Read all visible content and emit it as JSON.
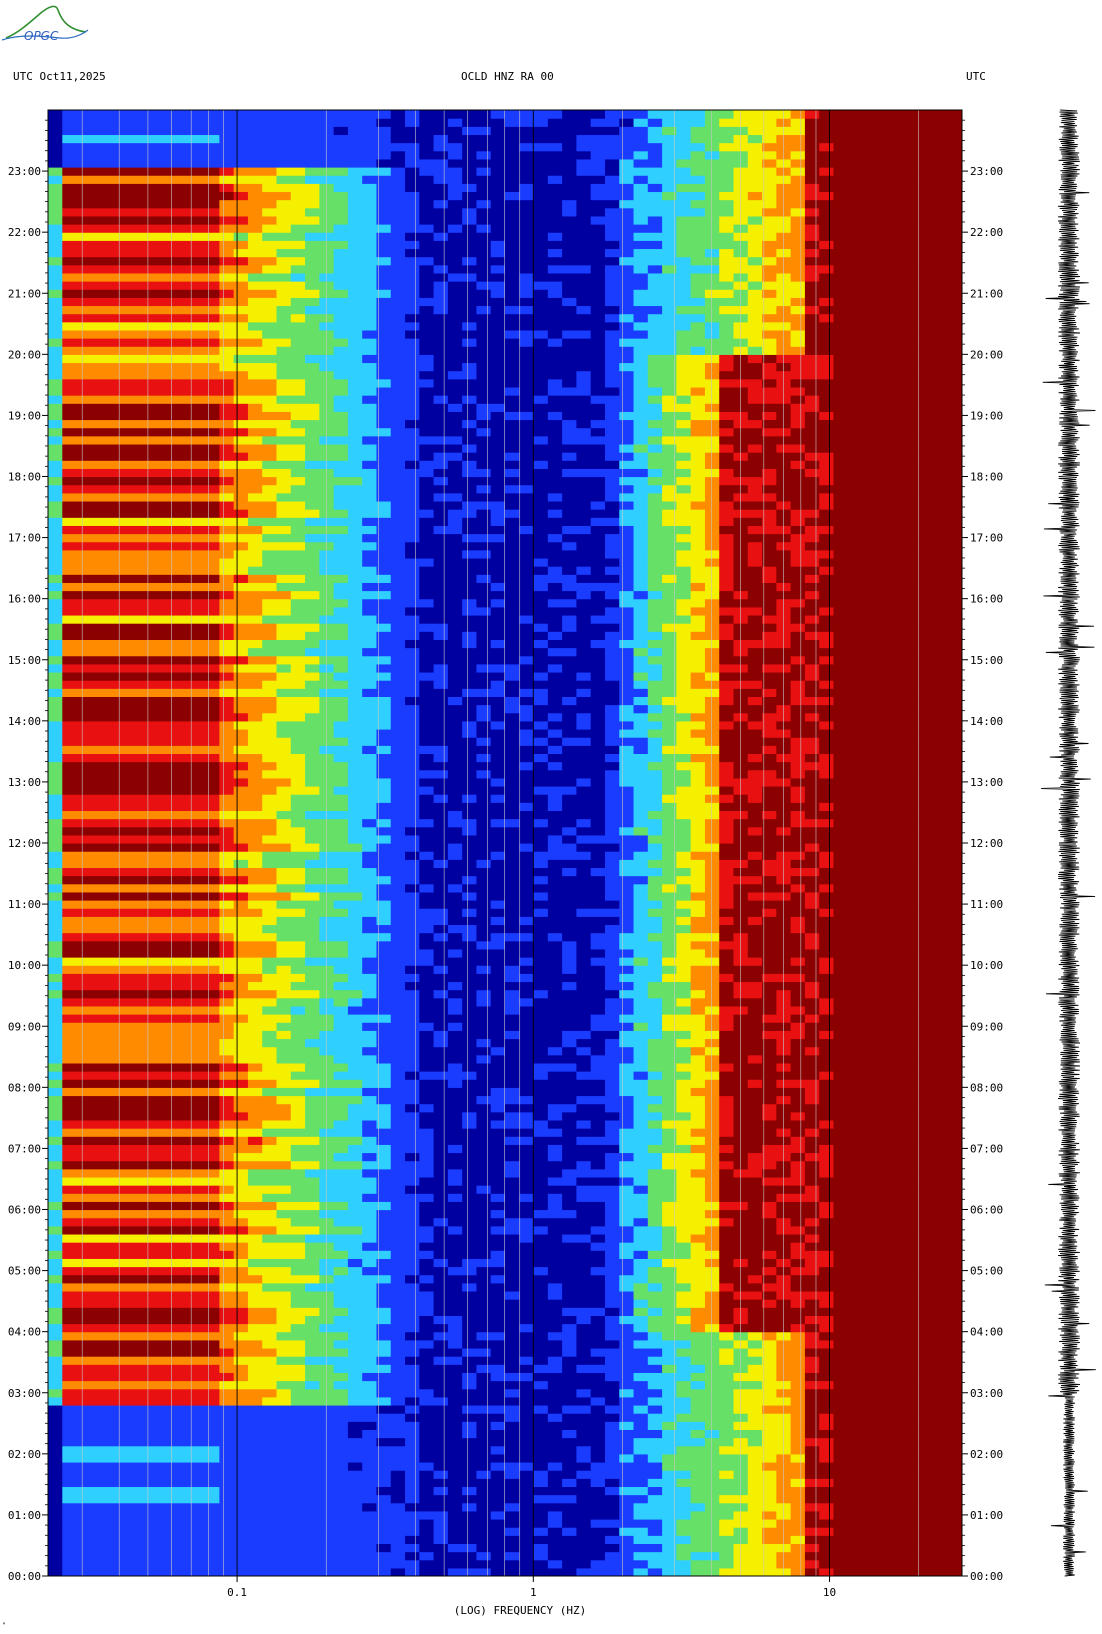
{
  "header": {
    "left": "UTC  Oct11,2025",
    "center": "OCLD HNZ RA 00",
    "right": "UTC"
  },
  "logo": {
    "text": "OPGC",
    "icon": "mountain-logo-icon"
  },
  "footer_mark": "\"",
  "colors": {
    "deep_blue": "#0000a0",
    "blue": "#1a3cff",
    "cyan": "#2fd0ff",
    "green": "#66e066",
    "yellow": "#f5f000",
    "orange": "#ff8c00",
    "red": "#e81010",
    "dark_red": "#8b0000"
  },
  "chart_data": {
    "type": "heatmap",
    "title": "OCLD HNZ RA 00",
    "xlabel": "(LOG) FREQUENCY (HZ)",
    "ylabel": "UTC",
    "x_scale": "log",
    "xlim": [
      0.023,
      28
    ],
    "x_ticks": [
      {
        "value": 0.1,
        "label": "0.1"
      },
      {
        "value": 1,
        "label": "1"
      },
      {
        "value": 10,
        "label": "10"
      }
    ],
    "ylim_hours": [
      0,
      24
    ],
    "y_ticks": [
      "00:00",
      "01:00",
      "02:00",
      "03:00",
      "04:00",
      "05:00",
      "06:00",
      "07:00",
      "08:00",
      "09:00",
      "10:00",
      "11:00",
      "12:00",
      "13:00",
      "14:00",
      "15:00",
      "16:00",
      "17:00",
      "18:00",
      "19:00",
      "20:00",
      "21:00",
      "22:00",
      "23:00"
    ],
    "colormap": [
      "#0000a0",
      "#1a3cff",
      "#2fd0ff",
      "#66e066",
      "#f5f000",
      "#ff8c00",
      "#e81010",
      "#8b0000"
    ],
    "features": {
      "low_freq_band_hz": [
        0.025,
        0.09
      ],
      "low_freq_active_hours": [
        2.75,
        23.1
      ],
      "high_freq_saturation_above_hz": 6.5,
      "noise_edge_hz_day": 4.2,
      "noise_edge_hz_night": 8.5
    },
    "trace": "seismogram"
  }
}
